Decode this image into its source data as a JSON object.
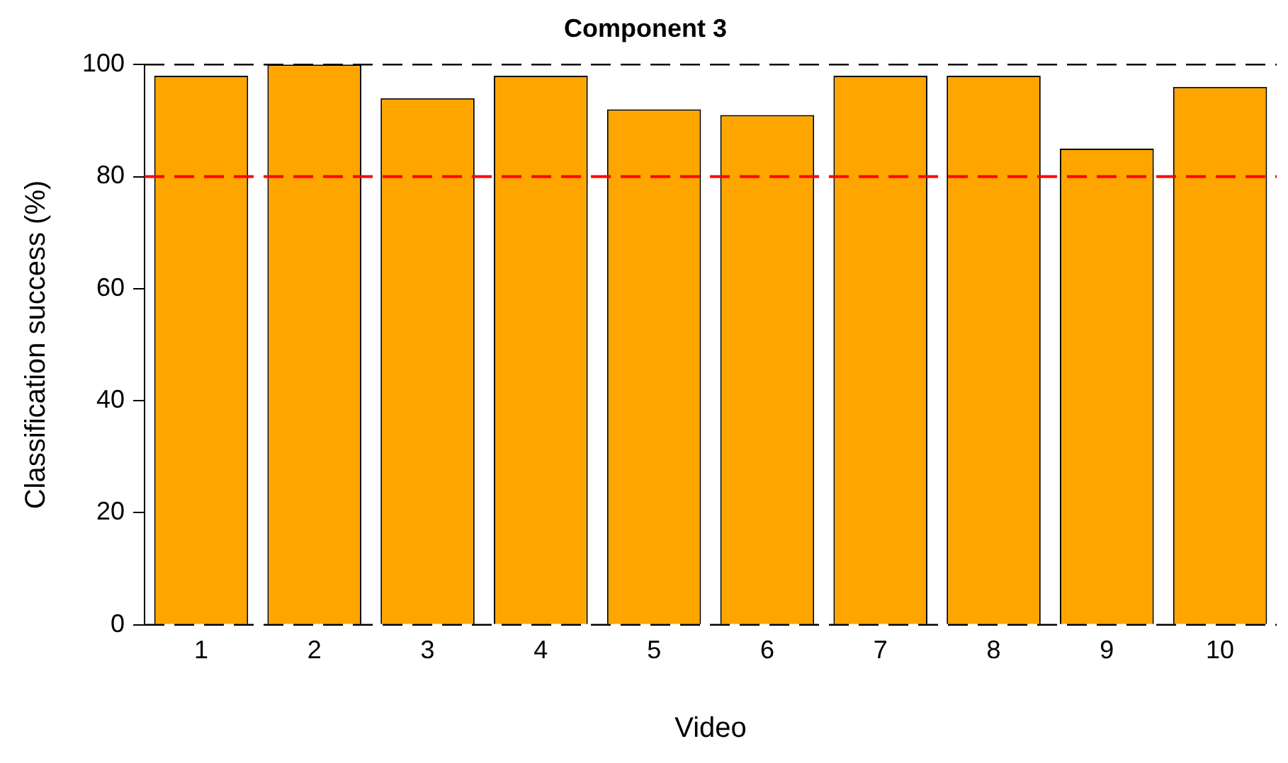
{
  "chart_data": {
    "type": "bar",
    "title": "Component 3",
    "xlabel": "Video",
    "ylabel": "Classification success (%)",
    "categories": [
      "1",
      "2",
      "3",
      "4",
      "5",
      "6",
      "7",
      "8",
      "9",
      "10"
    ],
    "values": [
      98,
      100,
      94,
      98,
      92,
      91,
      98,
      98,
      85,
      96
    ],
    "color": "#ffa500",
    "ylim": [
      0,
      100
    ],
    "yticks": [
      0,
      20,
      40,
      60,
      80,
      100
    ],
    "grid": false,
    "legend": false,
    "ref_lines": [
      {
        "axis": "y",
        "value": 100,
        "color": "#000000",
        "line_style": "dashed"
      },
      {
        "axis": "y",
        "value": 80,
        "color": "#ff0000",
        "line_style": "dashed"
      },
      {
        "axis": "y",
        "value": 0,
        "color": "#000000",
        "line_style": "dashed"
      }
    ]
  }
}
